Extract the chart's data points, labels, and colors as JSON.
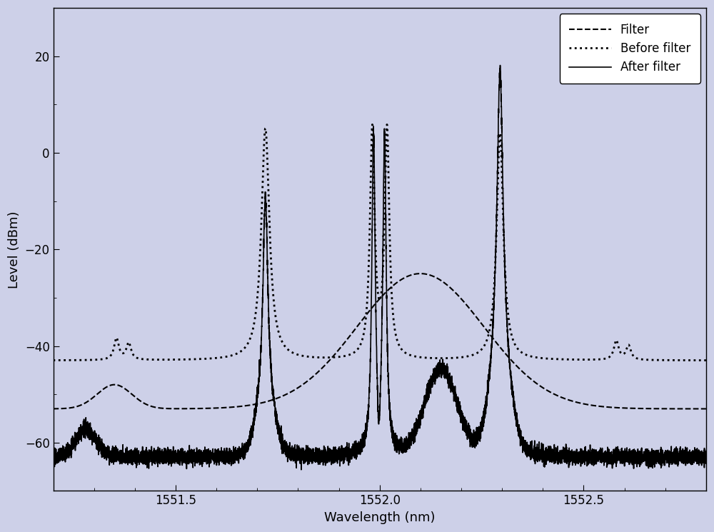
{
  "xlim": [
    1551.2,
    1552.8
  ],
  "ylim": [
    -70,
    30
  ],
  "xlabel": "Wavelength (nm)",
  "ylabel": "Level (dBm)",
  "xticks": [
    1551.5,
    1552.0,
    1552.5
  ],
  "yticks": [
    -60,
    -40,
    -20,
    0,
    20
  ],
  "background_color": "#cdd0e8",
  "legend_labels": [
    "Filter",
    "Before filter",
    "After filter"
  ],
  "axis_fontsize": 13,
  "tick_fontsize": 12,
  "legend_fontsize": 12
}
